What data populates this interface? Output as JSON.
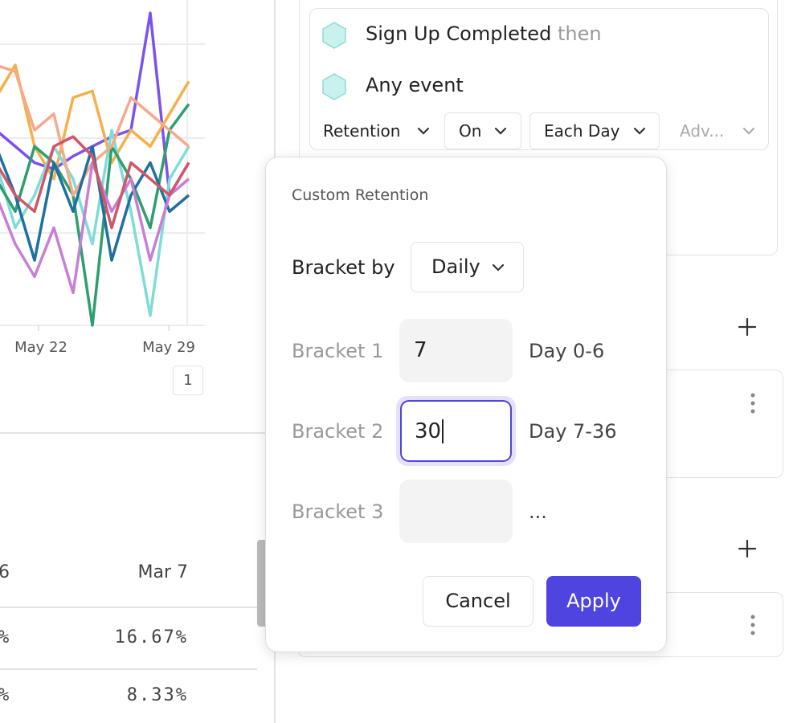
{
  "chart": {
    "ylim": [
      0,
      100
    ],
    "x_labels": [
      "May 22",
      "May 29"
    ],
    "series": [
      {
        "color": "#7b52f0",
        "values": [
          60,
          55,
          50,
          48,
          52,
          55,
          58,
          60,
          96,
          40,
          50
        ]
      },
      {
        "color": "#f4b04a",
        "values": [
          70,
          80,
          55,
          45,
          70,
          72,
          50,
          60,
          55,
          65,
          75
        ]
      },
      {
        "color": "#7fdcd6",
        "values": [
          50,
          30,
          40,
          55,
          45,
          25,
          60,
          35,
          3,
          45,
          55
        ]
      },
      {
        "color": "#2e9e6e",
        "values": [
          45,
          35,
          55,
          50,
          40,
          0,
          55,
          45,
          30,
          60,
          68
        ]
      },
      {
        "color": "#f7a98a",
        "values": [
          80,
          78,
          60,
          65,
          40,
          50,
          55,
          70,
          65,
          60,
          55
        ]
      },
      {
        "color": "#1f6fa0",
        "values": [
          55,
          40,
          20,
          50,
          35,
          55,
          20,
          40,
          50,
          35,
          40
        ]
      },
      {
        "color": "#c77fd6",
        "values": [
          40,
          25,
          15,
          30,
          10,
          50,
          35,
          45,
          20,
          40,
          45
        ]
      },
      {
        "color": "#d0566a",
        "values": [
          50,
          40,
          35,
          55,
          58,
          52,
          30,
          50,
          45,
          40,
          50
        ]
      }
    ]
  },
  "pagination": "1",
  "table": {
    "headers": [
      "6",
      "Mar 7"
    ],
    "rows": [
      [
        "%",
        "16.67%"
      ],
      [
        "%",
        "8.33%"
      ]
    ]
  },
  "query": {
    "steps": [
      "Sign Up Completed",
      "Any event"
    ],
    "then": "then",
    "controls": [
      "Retention",
      "On",
      "Each Day",
      "Adv..."
    ]
  },
  "popup": {
    "title": "Custom Retention",
    "bracket_by_label": "Bracket by",
    "bracket_by_value": "Daily",
    "brackets": [
      {
        "label": "Bracket 1",
        "value": "7",
        "range": "Day 0-6"
      },
      {
        "label": "Bracket 2",
        "value": "30",
        "range": "Day 7-36"
      },
      {
        "label": "Bracket 3",
        "value": "",
        "range": "..."
      }
    ],
    "cancel": "Cancel",
    "apply": "Apply"
  }
}
